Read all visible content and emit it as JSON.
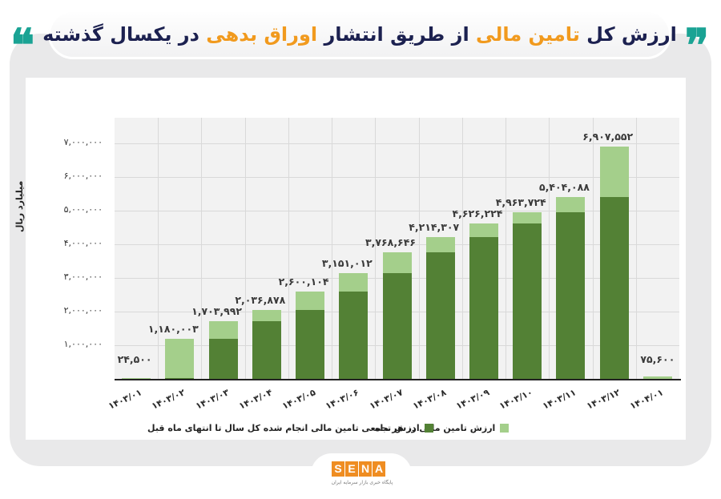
{
  "header": {
    "title_parts": [
      {
        "text": "ارزش کل ",
        "highlight": false
      },
      {
        "text": "تامین مالی",
        "highlight": true
      },
      {
        "text": " از طریق انتشار ",
        "highlight": false
      },
      {
        "text": "اوراق بدهی",
        "highlight": true
      },
      {
        "text": " در یکسال گذشته",
        "highlight": false
      }
    ],
    "open_quote": "❞",
    "close_quote": "❝"
  },
  "colors": {
    "title_text": "#1c2150",
    "title_highlight": "#f19a1e",
    "quote": "#1aa394",
    "series_cumulative": "#538135",
    "series_monthly": "#a4cf8b",
    "plot_bg": "#f2f2f2",
    "frame_bg": "#e9e9ea",
    "logo": "#ef8d22"
  },
  "chart_data": {
    "type": "bar",
    "stacked": true,
    "title": "ارزش کل تامین مالی از طریق انتشار اوراق بدهی در یکسال گذشته",
    "xlabel": "",
    "ylabel": "میلیارد ریال",
    "ylim": [
      0,
      7800000
    ],
    "yticks": [
      1000000,
      2000000,
      3000000,
      4000000,
      5000000,
      6000000,
      7000000
    ],
    "ytick_labels": [
      "۱,۰۰۰,۰۰۰",
      "۲,۰۰۰,۰۰۰",
      "۳,۰۰۰,۰۰۰",
      "۴,۰۰۰,۰۰۰",
      "۵,۰۰۰,۰۰۰",
      "۶,۰۰۰,۰۰۰",
      "۷,۰۰۰,۰۰۰"
    ],
    "grid": true,
    "legend_position": "bottom",
    "categories": [
      "۱۴۰۳/۰۱",
      "۱۴۰۳/۰۲",
      "۱۴۰۳/۰۳",
      "۱۴۰۳/۰۴",
      "۱۴۰۳/۰۵",
      "۱۴۰۳/۰۶",
      "۱۴۰۳/۰۷",
      "۱۴۰۳/۰۸",
      "۱۴۰۳/۰۹",
      "۱۴۰۳/۱۰",
      "۱۴۰۳/۱۱",
      "۱۴۰۳/۱۲",
      "۱۴۰۴/۰۱"
    ],
    "series": [
      {
        "name": "ارزش تجمعی تامین مالی انجام شده کل سال تا انتهای ماه قبل",
        "color": "#538135",
        "values": [
          0,
          24500,
          1180003,
          1703992,
          2036878,
          2600104,
          3151012,
          3768646,
          4214307,
          4626224,
          4963724,
          5404088,
          0
        ]
      },
      {
        "name": "ارزش تامین مالی در هر ماه",
        "color": "#a4cf8b",
        "values": [
          24500,
          1155503,
          523989,
          332886,
          563226,
          550908,
          617634,
          445661,
          411917,
          337500,
          440364,
          1503464,
          75600
        ]
      }
    ],
    "totals": [
      24500,
      1180003,
      1703992,
      2036878,
      2600104,
      3151012,
      3768646,
      4214307,
      4626224,
      4963724,
      5404088,
      6907552,
      75600
    ],
    "total_labels": [
      "۲۴,۵۰۰",
      "۱,۱۸۰,۰۰۳",
      "۱,۷۰۳,۹۹۲",
      "۲,۰۳۶,۸۷۸",
      "۲,۶۰۰,۱۰۴",
      "۳,۱۵۱,۰۱۲",
      "۳,۷۶۸,۶۴۶",
      "۴,۲۱۴,۳۰۷",
      "۴,۶۲۶,۲۲۴",
      "۴,۹۶۳,۷۲۴",
      "۵,۴۰۴,۰۸۸",
      "۶,۹۰۷,۵۵۲",
      "۷۵,۶۰۰"
    ]
  },
  "legend": {
    "cumulative": "ارزش تجمعی تامین مالی انجام شده کل سال تا انتهای ماه قبل",
    "monthly": "ارزش تامین مالی در هر ماه"
  },
  "footer": {
    "logo_letters": [
      "S",
      "E",
      "N",
      "A"
    ],
    "logo_subtitle": "پایگاه خبری بازار سرمایه ایران"
  }
}
